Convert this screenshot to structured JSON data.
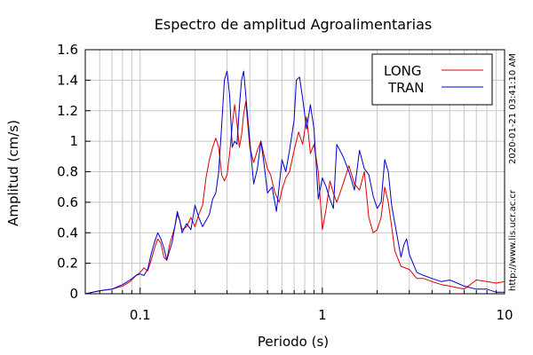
{
  "chart_data": {
    "type": "line",
    "title": "Espectro de amplitud Agroalimentarias",
    "xlabel": "Periodo (s)",
    "ylabel": "Amplitud (cm/s)",
    "x_scale": "log",
    "xlim": [
      0.05,
      10
    ],
    "ylim": [
      0,
      1.6
    ],
    "x_ticks": [
      {
        "value": 0.1,
        "label": "0.1"
      },
      {
        "value": 1,
        "label": "1"
      },
      {
        "value": 10,
        "label": "10"
      }
    ],
    "y_ticks": [
      {
        "value": 0,
        "label": "0"
      },
      {
        "value": 0.2,
        "label": "0.2"
      },
      {
        "value": 0.4,
        "label": "0.4"
      },
      {
        "value": 0.6,
        "label": "0.6"
      },
      {
        "value": 0.8,
        "label": "0.8"
      },
      {
        "value": 1.0,
        "label": "1"
      },
      {
        "value": 1.2,
        "label": "1.2"
      },
      {
        "value": 1.4,
        "label": "1.4"
      },
      {
        "value": 1.6,
        "label": "1.6"
      }
    ],
    "grid": true,
    "legend_position": "top-right",
    "series": [
      {
        "name": "LONG",
        "color": "#dd0000",
        "points": [
          [
            0.05,
            0.0
          ],
          [
            0.055,
            0.01
          ],
          [
            0.06,
            0.02
          ],
          [
            0.07,
            0.03
          ],
          [
            0.08,
            0.05
          ],
          [
            0.088,
            0.08
          ],
          [
            0.095,
            0.12
          ],
          [
            0.1,
            0.14
          ],
          [
            0.105,
            0.17
          ],
          [
            0.11,
            0.15
          ],
          [
            0.115,
            0.22
          ],
          [
            0.12,
            0.3
          ],
          [
            0.125,
            0.36
          ],
          [
            0.13,
            0.33
          ],
          [
            0.135,
            0.24
          ],
          [
            0.14,
            0.22
          ],
          [
            0.145,
            0.32
          ],
          [
            0.15,
            0.38
          ],
          [
            0.155,
            0.44
          ],
          [
            0.16,
            0.52
          ],
          [
            0.165,
            0.48
          ],
          [
            0.17,
            0.42
          ],
          [
            0.18,
            0.44
          ],
          [
            0.19,
            0.5
          ],
          [
            0.2,
            0.44
          ],
          [
            0.21,
            0.52
          ],
          [
            0.22,
            0.58
          ],
          [
            0.23,
            0.76
          ],
          [
            0.24,
            0.88
          ],
          [
            0.25,
            0.96
          ],
          [
            0.26,
            1.02
          ],
          [
            0.27,
            0.96
          ],
          [
            0.28,
            0.78
          ],
          [
            0.29,
            0.74
          ],
          [
            0.3,
            0.78
          ],
          [
            0.31,
            0.92
          ],
          [
            0.32,
            1.1
          ],
          [
            0.33,
            1.24
          ],
          [
            0.34,
            1.12
          ],
          [
            0.35,
            0.96
          ],
          [
            0.36,
            1.04
          ],
          [
            0.37,
            1.18
          ],
          [
            0.38,
            1.26
          ],
          [
            0.4,
            0.96
          ],
          [
            0.42,
            0.86
          ],
          [
            0.44,
            0.94
          ],
          [
            0.46,
            1.0
          ],
          [
            0.48,
            0.9
          ],
          [
            0.5,
            0.82
          ],
          [
            0.52,
            0.78
          ],
          [
            0.55,
            0.66
          ],
          [
            0.58,
            0.6
          ],
          [
            0.6,
            0.68
          ],
          [
            0.63,
            0.76
          ],
          [
            0.66,
            0.8
          ],
          [
            0.7,
            0.94
          ],
          [
            0.74,
            1.06
          ],
          [
            0.78,
            0.98
          ],
          [
            0.82,
            1.16
          ],
          [
            0.86,
            0.92
          ],
          [
            0.9,
            0.98
          ],
          [
            0.95,
            0.8
          ],
          [
            1.0,
            0.42
          ],
          [
            1.05,
            0.56
          ],
          [
            1.1,
            0.74
          ],
          [
            1.15,
            0.66
          ],
          [
            1.2,
            0.6
          ],
          [
            1.3,
            0.72
          ],
          [
            1.4,
            0.84
          ],
          [
            1.5,
            0.72
          ],
          [
            1.6,
            0.68
          ],
          [
            1.7,
            0.8
          ],
          [
            1.8,
            0.5
          ],
          [
            1.9,
            0.4
          ],
          [
            2.0,
            0.42
          ],
          [
            2.1,
            0.5
          ],
          [
            2.2,
            0.7
          ],
          [
            2.3,
            0.6
          ],
          [
            2.4,
            0.44
          ],
          [
            2.5,
            0.28
          ],
          [
            2.7,
            0.18
          ],
          [
            3.0,
            0.16
          ],
          [
            3.3,
            0.1
          ],
          [
            3.6,
            0.1
          ],
          [
            4.0,
            0.08
          ],
          [
            4.5,
            0.06
          ],
          [
            5.0,
            0.05
          ],
          [
            5.5,
            0.04
          ],
          [
            6.0,
            0.03
          ],
          [
            7.0,
            0.09
          ],
          [
            8.0,
            0.08
          ],
          [
            9.0,
            0.07
          ],
          [
            10.0,
            0.08
          ]
        ]
      },
      {
        "name": "TRAN",
        "color": "#0000cc",
        "points": [
          [
            0.05,
            0.0
          ],
          [
            0.055,
            0.01
          ],
          [
            0.06,
            0.02
          ],
          [
            0.07,
            0.03
          ],
          [
            0.08,
            0.06
          ],
          [
            0.088,
            0.09
          ],
          [
            0.095,
            0.12
          ],
          [
            0.1,
            0.13
          ],
          [
            0.105,
            0.12
          ],
          [
            0.11,
            0.16
          ],
          [
            0.115,
            0.26
          ],
          [
            0.12,
            0.34
          ],
          [
            0.125,
            0.4
          ],
          [
            0.13,
            0.36
          ],
          [
            0.135,
            0.3
          ],
          [
            0.14,
            0.22
          ],
          [
            0.145,
            0.28
          ],
          [
            0.15,
            0.34
          ],
          [
            0.155,
            0.44
          ],
          [
            0.16,
            0.54
          ],
          [
            0.165,
            0.48
          ],
          [
            0.17,
            0.4
          ],
          [
            0.18,
            0.46
          ],
          [
            0.19,
            0.42
          ],
          [
            0.2,
            0.58
          ],
          [
            0.21,
            0.5
          ],
          [
            0.22,
            0.44
          ],
          [
            0.23,
            0.48
          ],
          [
            0.24,
            0.52
          ],
          [
            0.25,
            0.62
          ],
          [
            0.26,
            0.66
          ],
          [
            0.27,
            0.8
          ],
          [
            0.28,
            1.1
          ],
          [
            0.29,
            1.4
          ],
          [
            0.3,
            1.46
          ],
          [
            0.31,
            1.3
          ],
          [
            0.32,
            0.96
          ],
          [
            0.33,
            1.0
          ],
          [
            0.34,
            0.98
          ],
          [
            0.35,
            1.22
          ],
          [
            0.36,
            1.4
          ],
          [
            0.37,
            1.46
          ],
          [
            0.38,
            1.3
          ],
          [
            0.4,
            1.0
          ],
          [
            0.42,
            0.72
          ],
          [
            0.44,
            0.82
          ],
          [
            0.46,
            1.0
          ],
          [
            0.48,
            0.84
          ],
          [
            0.5,
            0.66
          ],
          [
            0.53,
            0.7
          ],
          [
            0.56,
            0.54
          ],
          [
            0.6,
            0.88
          ],
          [
            0.63,
            0.8
          ],
          [
            0.66,
            0.94
          ],
          [
            0.7,
            1.14
          ],
          [
            0.72,
            1.4
          ],
          [
            0.75,
            1.42
          ],
          [
            0.78,
            1.28
          ],
          [
            0.82,
            1.08
          ],
          [
            0.86,
            1.24
          ],
          [
            0.9,
            1.08
          ],
          [
            0.95,
            0.62
          ],
          [
            1.0,
            0.76
          ],
          [
            1.05,
            0.7
          ],
          [
            1.1,
            0.62
          ],
          [
            1.15,
            0.56
          ],
          [
            1.2,
            0.98
          ],
          [
            1.3,
            0.9
          ],
          [
            1.4,
            0.8
          ],
          [
            1.5,
            0.68
          ],
          [
            1.6,
            0.94
          ],
          [
            1.7,
            0.82
          ],
          [
            1.8,
            0.78
          ],
          [
            1.9,
            0.64
          ],
          [
            2.0,
            0.56
          ],
          [
            2.1,
            0.6
          ],
          [
            2.2,
            0.88
          ],
          [
            2.3,
            0.8
          ],
          [
            2.4,
            0.58
          ],
          [
            2.5,
            0.46
          ],
          [
            2.7,
            0.24
          ],
          [
            2.8,
            0.32
          ],
          [
            2.9,
            0.36
          ],
          [
            3.0,
            0.26
          ],
          [
            3.3,
            0.14
          ],
          [
            3.6,
            0.12
          ],
          [
            4.0,
            0.1
          ],
          [
            4.5,
            0.08
          ],
          [
            5.0,
            0.09
          ],
          [
            5.5,
            0.07
          ],
          [
            6.0,
            0.05
          ],
          [
            7.0,
            0.03
          ],
          [
            8.0,
            0.03
          ],
          [
            9.0,
            0.01
          ],
          [
            10.0,
            0.01
          ]
        ]
      }
    ],
    "side_annotations": [
      "2020-01-21 03:41:10 AM",
      "http://www.lis.ucr.ac.cr"
    ]
  }
}
